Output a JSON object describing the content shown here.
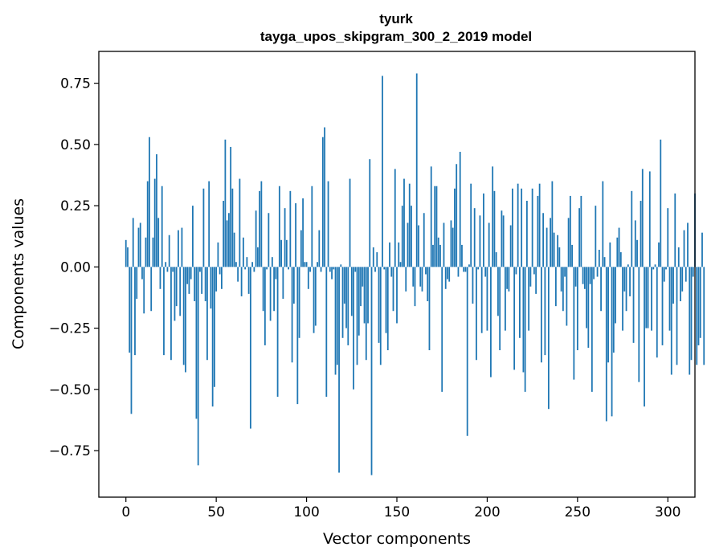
{
  "chart_data": {
    "type": "bar",
    "title": "tyurk",
    "subtitle": "tayga_upos_skipgram_300_2_2019 model",
    "xlabel": "Vector components",
    "ylabel": "Components values",
    "xlim": [
      -15,
      315
    ],
    "ylim": [
      -0.94,
      0.88
    ],
    "xticks": [
      0,
      50,
      100,
      150,
      200,
      250,
      300
    ],
    "yticks": [
      -0.75,
      -0.5,
      -0.25,
      0.0,
      0.25,
      0.5,
      0.75
    ],
    "ytick_labels": [
      "−0.75",
      "−0.50",
      "−0.25",
      "0.00",
      "0.25",
      "0.50",
      "0.75"
    ],
    "grid": false,
    "bar_color": "#1f77b4",
    "values": [
      0.11,
      0.08,
      -0.35,
      -0.6,
      0.2,
      -0.36,
      -0.13,
      0.16,
      0.18,
      -0.05,
      -0.19,
      0.12,
      0.35,
      0.53,
      -0.18,
      0.12,
      0.36,
      0.46,
      0.2,
      -0.09,
      0.33,
      -0.36,
      0.02,
      -0.02,
      0.13,
      -0.38,
      -0.02,
      -0.22,
      -0.16,
      0.15,
      -0.2,
      0.16,
      -0.4,
      -0.43,
      -0.07,
      -0.11,
      -0.05,
      0.25,
      -0.14,
      -0.62,
      -0.81,
      -0.02,
      -0.11,
      0.32,
      -0.14,
      -0.38,
      0.35,
      -0.17,
      -0.57,
      -0.49,
      -0.1,
      0.1,
      -0.03,
      -0.09,
      0.27,
      0.52,
      0.19,
      0.22,
      0.49,
      0.32,
      0.14,
      0.02,
      -0.06,
      0.36,
      -0.12,
      0.12,
      -0.01,
      0.04,
      -0.11,
      -0.66,
      0.02,
      -0.02,
      0.23,
      0.08,
      0.31,
      0.35,
      -0.18,
      -0.32,
      -0.01,
      0.22,
      -0.22,
      0.04,
      -0.18,
      -0.05,
      -0.53,
      0.33,
      0.11,
      -0.13,
      0.24,
      0.11,
      -0.01,
      0.31,
      -0.39,
      -0.15,
      0.26,
      -0.56,
      -0.29,
      0.15,
      0.28,
      0.02,
      0.02,
      -0.09,
      -0.02,
      0.33,
      -0.27,
      -0.24,
      0.02,
      0.15,
      -0.02,
      0.53,
      0.57,
      -0.53,
      0.35,
      -0.02,
      -0.05,
      -0.01,
      -0.44,
      -0.4,
      -0.84,
      0.01,
      -0.29,
      -0.15,
      -0.25,
      -0.32,
      0.36,
      -0.2,
      -0.5,
      -0.02,
      -0.4,
      -0.28,
      -0.16,
      -0.08,
      -0.23,
      -0.38,
      -0.23,
      0.44,
      -0.85,
      0.08,
      -0.02,
      0.06,
      -0.31,
      -0.4,
      0.78,
      -0.01,
      -0.27,
      -0.34,
      0.1,
      -0.04,
      -0.18,
      0.4,
      -0.23,
      0.1,
      0.02,
      0.25,
      0.36,
      -0.1,
      0.18,
      0.34,
      0.25,
      -0.08,
      -0.16,
      0.79,
      0.17,
      -0.08,
      -0.1,
      0.22,
      -0.03,
      -0.14,
      -0.34,
      0.41,
      0.09,
      0.33,
      0.33,
      0.12,
      0.09,
      -0.51,
      0.18,
      -0.09,
      -0.05,
      -0.06,
      0.19,
      0.16,
      0.32,
      0.42,
      -0.04,
      0.47,
      0.09,
      -0.02,
      -0.02,
      -0.69,
      0.01,
      0.34,
      -0.15,
      0.24,
      -0.38,
      -0.01,
      0.21,
      -0.27,
      0.3,
      -0.04,
      -0.26,
      0.18,
      -0.45,
      0.41,
      0.31,
      0.06,
      -0.2,
      -0.34,
      0.23,
      0.21,
      -0.26,
      -0.09,
      -0.1,
      0.17,
      0.32,
      -0.42,
      -0.03,
      0.34,
      -0.29,
      0.32,
      -0.43,
      -0.51,
      0.27,
      -0.26,
      -0.08,
      0.32,
      -0.03,
      -0.11,
      0.29,
      0.34,
      -0.39,
      0.22,
      -0.36,
      0.16,
      -0.58,
      0.2,
      0.35,
      0.14,
      -0.16,
      0.13,
      0.08,
      -0.1,
      -0.18,
      -0.04,
      -0.24,
      0.2,
      0.29,
      0.09,
      -0.46,
      -0.08,
      -0.34,
      0.24,
      0.29,
      -0.07,
      -0.09,
      -0.25,
      -0.33,
      -0.07,
      -0.51,
      -0.05,
      0.25,
      -0.04,
      0.07,
      -0.18,
      0.35,
      0.04,
      -0.63,
      -0.39,
      0.1,
      -0.61,
      -0.35,
      -0.23,
      0.12,
      0.16,
      0.06,
      -0.26,
      -0.1,
      -0.18,
      0.01,
      -0.12,
      0.31,
      -0.31,
      0.19,
      0.11,
      -0.47,
      0.27,
      0.4,
      -0.57,
      -0.25,
      -0.25,
      0.39,
      -0.26,
      -0.01,
      0.01,
      -0.37,
      0.1,
      0.52,
      -0.32,
      -0.06,
      -0.01,
      0.24,
      -0.26,
      -0.44,
      -0.15,
      0.3,
      -0.4,
      0.08,
      -0.14,
      -0.1,
      0.15,
      -0.06,
      0.18,
      -0.44,
      -0.38,
      -0.04,
      0.3,
      -0.4,
      -0.32,
      -0.29,
      0.14,
      -0.4
    ]
  }
}
